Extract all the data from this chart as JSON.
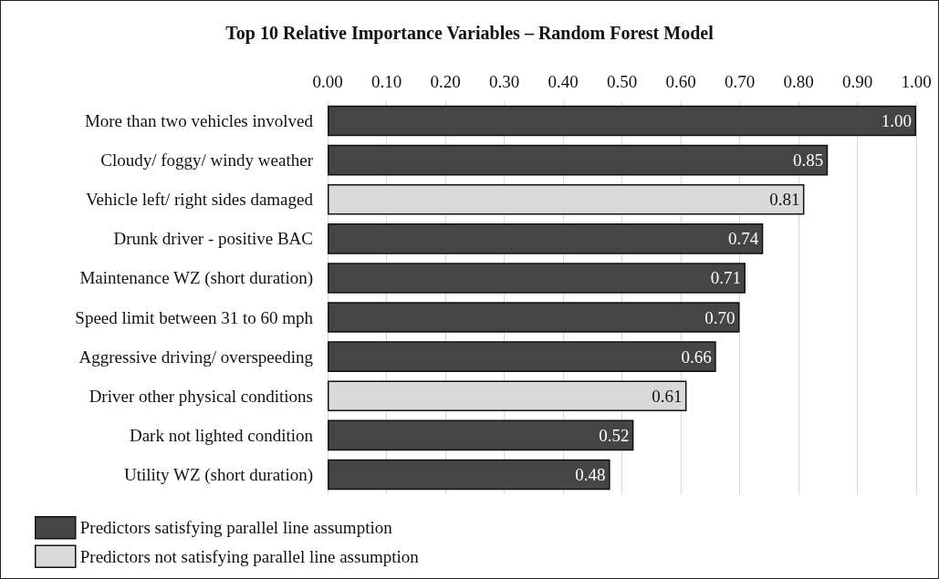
{
  "chart_data": {
    "type": "bar",
    "orientation": "horizontal",
    "title": "Top 10 Relative Importance Variables – Random Forest Model",
    "categories": [
      "More than two vehicles involved",
      "Cloudy/ foggy/ windy weather",
      "Vehicle left/ right sides damaged",
      "Drunk driver - positive BAC",
      "Maintenance WZ (short duration)",
      "Speed limit between 31 to 60 mph",
      "Aggressive driving/ overspeeding",
      "Driver other physical conditions",
      "Dark not lighted condition",
      "Utility WZ (short duration)"
    ],
    "series": [
      {
        "name": "Predictors satisfying parallel line assumption",
        "color": "#454545",
        "values": [
          1.0,
          0.85,
          null,
          0.74,
          0.71,
          0.7,
          0.66,
          null,
          0.52,
          0.48
        ],
        "value_labels": [
          "1.00",
          "0.85",
          null,
          "0.74",
          "0.71",
          "0.70",
          "0.66",
          null,
          "0.52",
          "0.48"
        ]
      },
      {
        "name": "Predictors not satisfying parallel line assumption",
        "color": "#d9d9d9",
        "values": [
          null,
          null,
          0.81,
          null,
          null,
          null,
          null,
          0.61,
          null,
          null
        ],
        "value_labels": [
          null,
          null,
          "0.81",
          null,
          null,
          null,
          null,
          "0.61",
          null,
          null
        ]
      }
    ],
    "xlim": [
      0,
      1
    ],
    "xticks": [
      {
        "value": 0,
        "label": "0.00"
      },
      {
        "value": 0.1,
        "label": "0.10"
      },
      {
        "value": 0.2,
        "label": "0.20"
      },
      {
        "value": 0.3,
        "label": "0.30"
      },
      {
        "value": 0.4,
        "label": "0.40"
      },
      {
        "value": 0.5,
        "label": "0.50"
      },
      {
        "value": 0.6,
        "label": "0.60"
      },
      {
        "value": 0.7,
        "label": "0.70"
      },
      {
        "value": 0.8,
        "label": "0.80"
      },
      {
        "value": 0.9,
        "label": "0.90"
      },
      {
        "value": 1,
        "label": "1.00"
      }
    ],
    "grid": "x",
    "legend": "bottom left"
  }
}
